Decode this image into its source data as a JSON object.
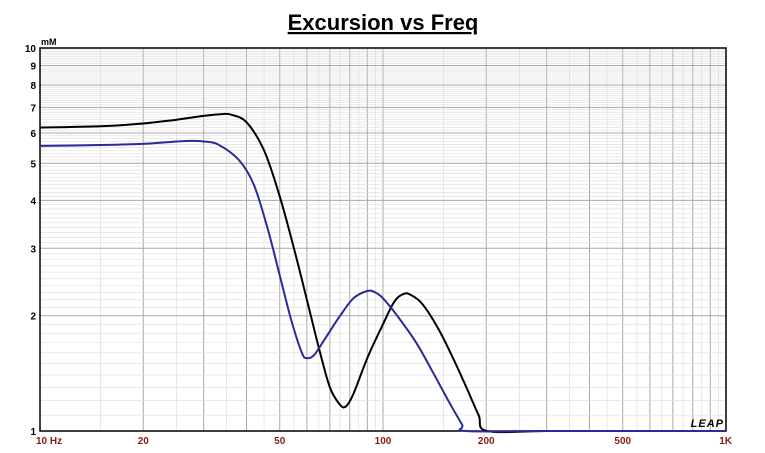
{
  "chart_data": {
    "type": "line",
    "title": "Excursion vs Freq",
    "ylabel": "mM",
    "brand": "LEAP",
    "x_scale": "log",
    "y_scale": "log",
    "xlim": [
      10,
      1000
    ],
    "ylim": [
      1,
      10
    ],
    "grid": true,
    "x_ticks": [
      {
        "value": 10,
        "label": "10  Hz"
      },
      {
        "value": 20,
        "label": "20"
      },
      {
        "value": 50,
        "label": "50"
      },
      {
        "value": 100,
        "label": "100"
      },
      {
        "value": 200,
        "label": "200"
      },
      {
        "value": 500,
        "label": "500"
      },
      {
        "value": 1000,
        "label": "1K"
      }
    ],
    "y_ticks": [
      {
        "value": 1,
        "label": "1"
      },
      {
        "value": 2,
        "label": "2"
      },
      {
        "value": 3,
        "label": "3"
      },
      {
        "value": 4,
        "label": "4"
      },
      {
        "value": 5,
        "label": "5"
      },
      {
        "value": 6,
        "label": "6"
      },
      {
        "value": 7,
        "label": "7"
      },
      {
        "value": 8,
        "label": "8"
      },
      {
        "value": 9,
        "label": "9"
      },
      {
        "value": 10,
        "label": "10"
      }
    ],
    "series": [
      {
        "color": "#000000",
        "points": [
          [
            10,
            6.2
          ],
          [
            15,
            6.25
          ],
          [
            20,
            6.35
          ],
          [
            25,
            6.5
          ],
          [
            30,
            6.65
          ],
          [
            34,
            6.72
          ],
          [
            36,
            6.7
          ],
          [
            40,
            6.4
          ],
          [
            45,
            5.4
          ],
          [
            50,
            4.1
          ],
          [
            55,
            3.0
          ],
          [
            60,
            2.2
          ],
          [
            65,
            1.65
          ],
          [
            70,
            1.3
          ],
          [
            75,
            1.17
          ],
          [
            78,
            1.16
          ],
          [
            82,
            1.25
          ],
          [
            90,
            1.55
          ],
          [
            100,
            1.9
          ],
          [
            108,
            2.18
          ],
          [
            115,
            2.28
          ],
          [
            120,
            2.27
          ],
          [
            130,
            2.15
          ],
          [
            145,
            1.85
          ],
          [
            160,
            1.55
          ],
          [
            175,
            1.3
          ],
          [
            190,
            1.1
          ],
          [
            201,
            1.0
          ],
          [
            300,
            1.0
          ],
          [
            500,
            1.0
          ],
          [
            1000,
            1.0
          ]
        ]
      },
      {
        "color": "#2a2a9a",
        "points": [
          [
            10,
            5.55
          ],
          [
            15,
            5.58
          ],
          [
            20,
            5.62
          ],
          [
            25,
            5.7
          ],
          [
            28,
            5.72
          ],
          [
            30,
            5.7
          ],
          [
            33,
            5.6
          ],
          [
            38,
            5.1
          ],
          [
            42,
            4.4
          ],
          [
            46,
            3.4
          ],
          [
            50,
            2.55
          ],
          [
            54,
            1.95
          ],
          [
            58,
            1.6
          ],
          [
            60,
            1.55
          ],
          [
            63,
            1.58
          ],
          [
            68,
            1.75
          ],
          [
            75,
            2.0
          ],
          [
            82,
            2.22
          ],
          [
            90,
            2.32
          ],
          [
            95,
            2.3
          ],
          [
            100,
            2.22
          ],
          [
            110,
            2.0
          ],
          [
            125,
            1.7
          ],
          [
            140,
            1.42
          ],
          [
            155,
            1.2
          ],
          [
            170,
            1.04
          ],
          [
            175,
            1.0
          ],
          [
            300,
            1.0
          ],
          [
            500,
            1.0
          ],
          [
            1000,
            1.0
          ]
        ]
      }
    ]
  }
}
